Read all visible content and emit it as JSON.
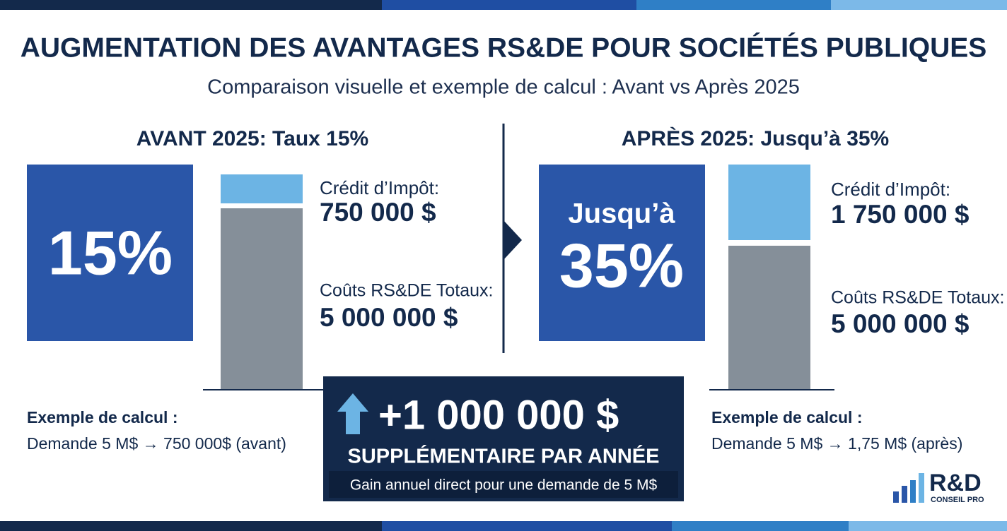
{
  "header": {
    "title": "AUGMENTATION DES AVANTAGES RS&DE POUR SOCIÉTÉS PUBLIQUES",
    "subtitle": "Comparaison visuelle et exemple de calcul : Avant vs Après 2025"
  },
  "before": {
    "heading": "AVANT 2025: Taux 15%",
    "rate": "15%",
    "credit_label": "Crédit d’Impôt:",
    "credit_amount": "750 000 $",
    "cost_label": "Coûts RS&DE Totaux:",
    "cost_amount": "5 000 000 $",
    "example_label": "Exemple de calcul :",
    "example_text": "Demande 5 M$ → 750 000$ (avant)"
  },
  "after": {
    "heading": "APRÈS 2025: Jusqu’à 35%",
    "rate_prefix": "Jusqu’à",
    "rate": "35%",
    "credit_label": "Crédit d’Impôt:",
    "credit_amount": "1 750 000 $",
    "cost_label": "Coûts RS&DE Totaux:",
    "cost_amount": "5 000 000 $",
    "example_label": "Exemple de calcul :",
    "example_text": "Demande 5 M$ → 1,75 M$ (après)"
  },
  "highlight": {
    "amount": "+1 000 000 $",
    "caption": "SUPPLÉMENTAIRE PAR ANNÉE",
    "note": "Gain annuel direct pour une demande de 5 M$"
  },
  "logo": {
    "name": "R&D",
    "tagline": "CONSEIL PRO"
  }
}
